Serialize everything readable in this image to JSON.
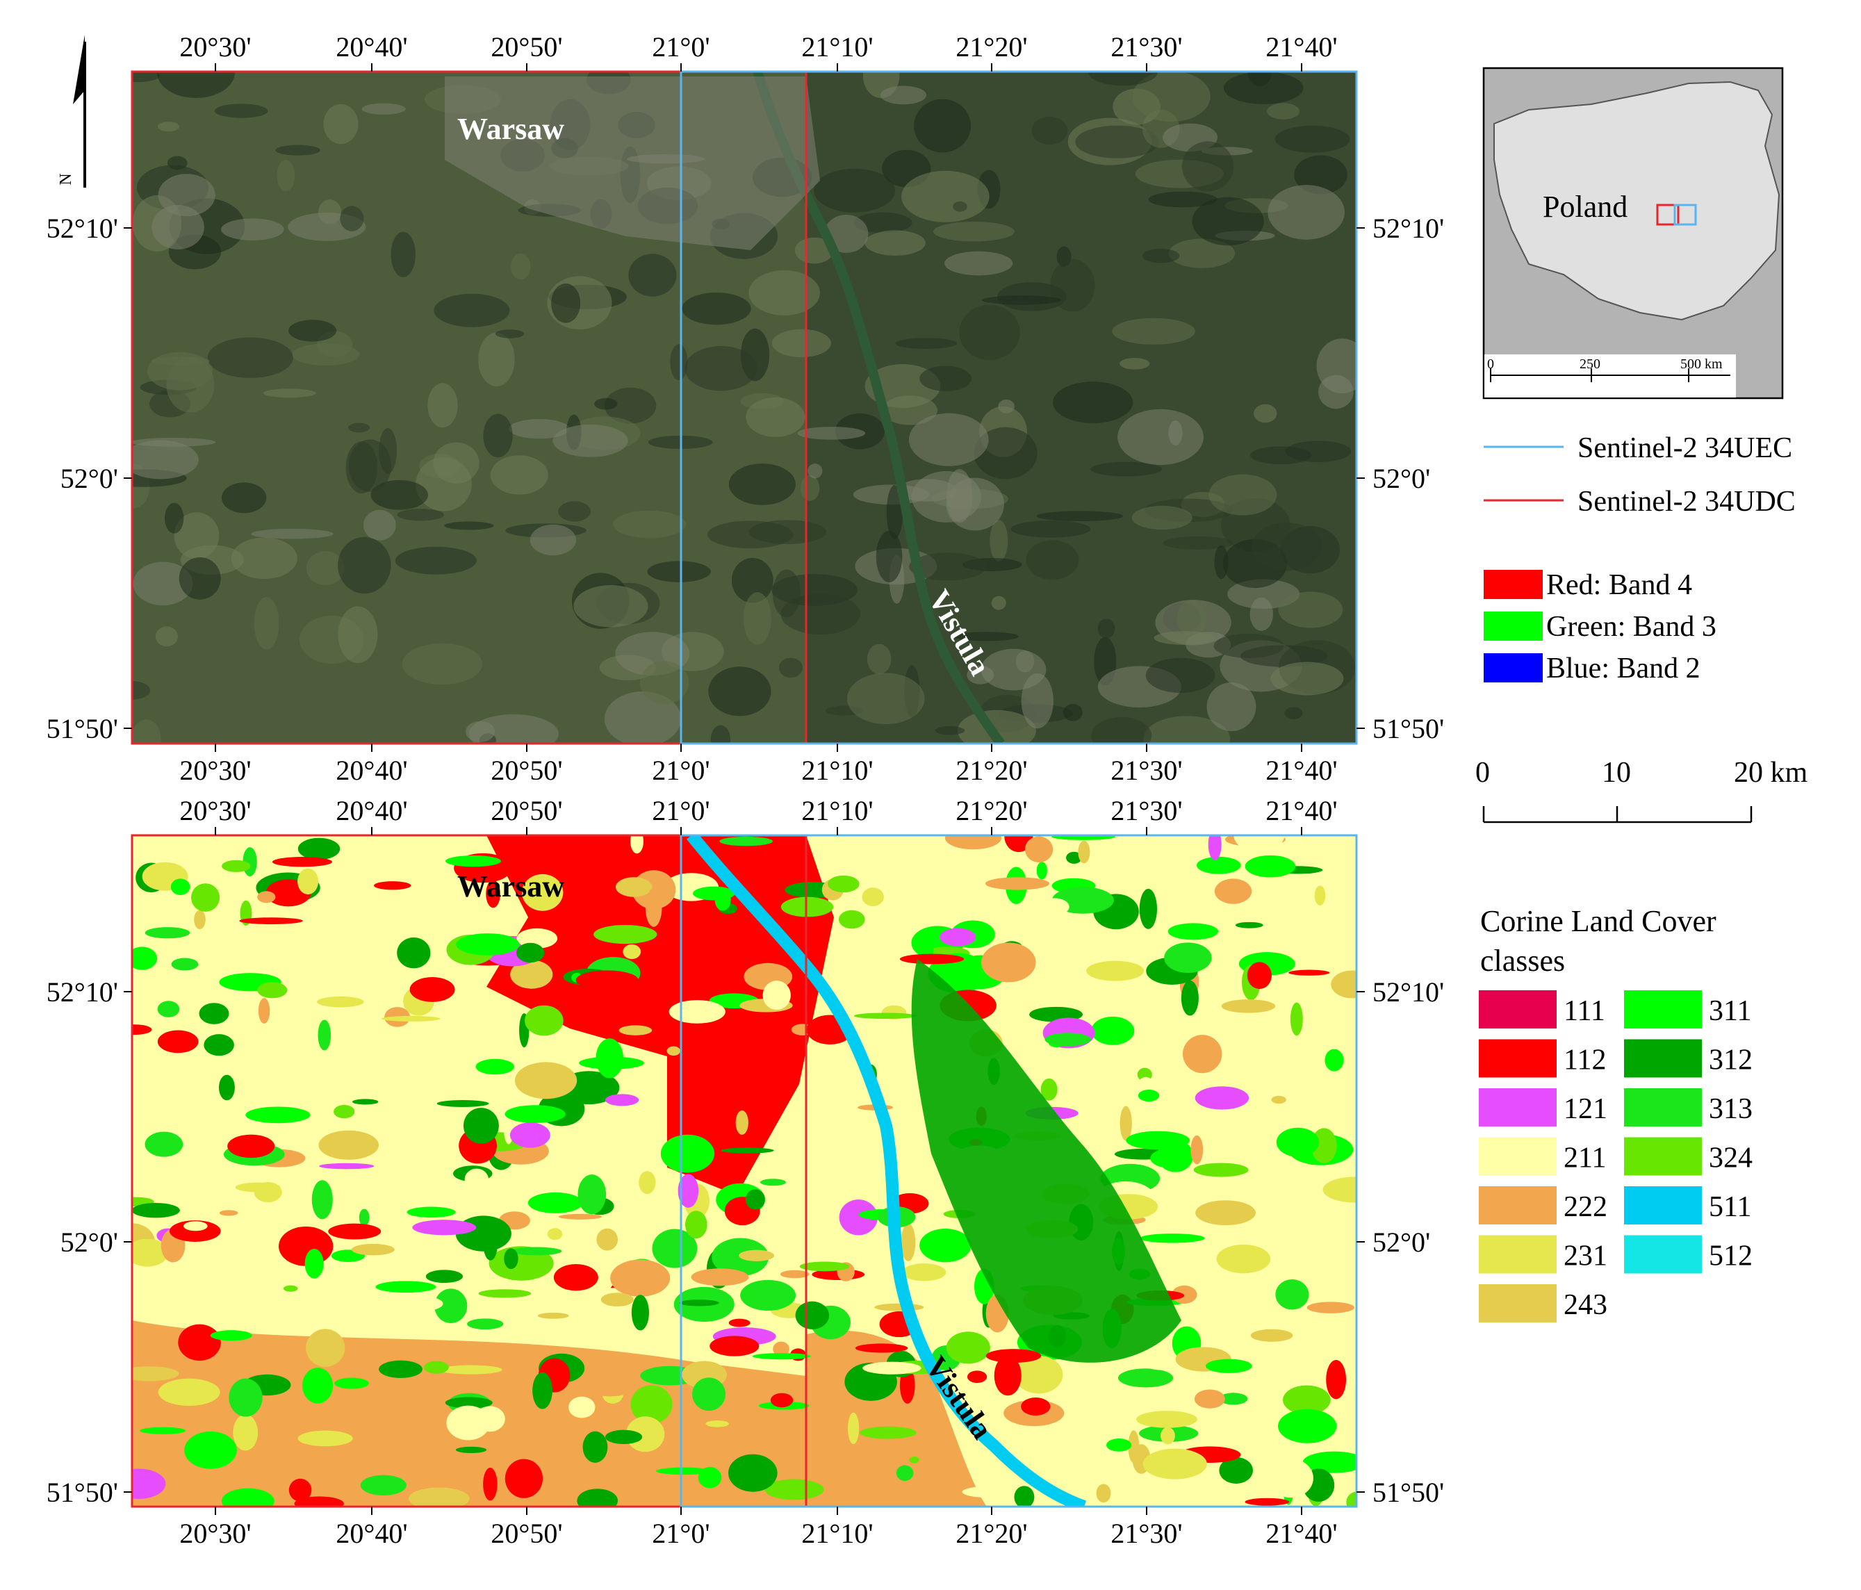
{
  "top_map": {
    "x_ticks": [
      "20°30'",
      "20°40'",
      "20°50'",
      "21°0'",
      "21°10'",
      "21°20'",
      "21°30'",
      "21°40'"
    ],
    "y_ticks": [
      "52°10'",
      "52°0'",
      "51°50'"
    ],
    "labels": {
      "city": "Warsaw",
      "river": "Vistula"
    },
    "colors": {
      "forest": "#1e2a1c",
      "fields": "#4f5f3e",
      "urban": "#8a8a82"
    }
  },
  "bottom_map": {
    "x_ticks": [
      "20°30'",
      "20°40'",
      "20°50'",
      "21°0'",
      "21°10'",
      "21°20'",
      "21°30'",
      "21°40'"
    ],
    "y_ticks": [
      "52°10'",
      "52°0'",
      "51°50'"
    ],
    "labels": {
      "city": "Warsaw",
      "river": "Vistula"
    }
  },
  "north_arrow": {
    "label": "N"
  },
  "inset": {
    "country_label": "Poland",
    "scale_labels": [
      "0",
      "250",
      "500 km"
    ]
  },
  "tile_legend": [
    {
      "label": "Sentinel-2 34UEC",
      "color": "#5ab4f0"
    },
    {
      "label": "Sentinel-2 34UDC",
      "color": "#e8262b"
    }
  ],
  "band_legend": [
    {
      "label": "Red: Band 4",
      "color": "#ff0000"
    },
    {
      "label": "Green: Band 3",
      "color": "#00ff00"
    },
    {
      "label": "Blue: Band 2",
      "color": "#0000ff"
    }
  ],
  "scale_bar": {
    "labels": [
      "0",
      "10",
      "20 km"
    ]
  },
  "clc_legend": {
    "title_line1": "Corine Land Cover",
    "title_line2": "classes",
    "classes": [
      {
        "code": "111",
        "color": "#e6004d"
      },
      {
        "code": "112",
        "color": "#ff0000"
      },
      {
        "code": "121",
        "color": "#e64dff"
      },
      {
        "code": "211",
        "color": "#ffffa8"
      },
      {
        "code": "222",
        "color": "#f2a64d"
      },
      {
        "code": "231",
        "color": "#e6e64d"
      },
      {
        "code": "243",
        "color": "#e6cc4d"
      },
      {
        "code": "311",
        "color": "#00ff00"
      },
      {
        "code": "312",
        "color": "#00a600"
      },
      {
        "code": "313",
        "color": "#1ae61a"
      },
      {
        "code": "324",
        "color": "#66e600"
      },
      {
        "code": "511",
        "color": "#00ccf2"
      },
      {
        "code": "512",
        "color": "#14e6e6"
      }
    ]
  }
}
